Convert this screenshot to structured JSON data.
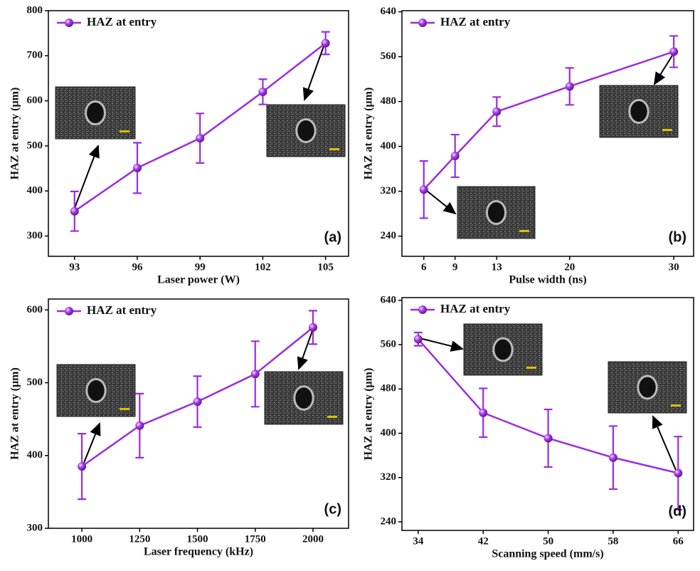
{
  "chart_data": [
    {
      "type": "line",
      "panel_label": "(a)",
      "x_label": "Laser power (W)",
      "y_label": "HAZ at entry (µm)",
      "x": [
        93,
        96,
        99,
        102,
        105
      ],
      "xlim": [
        91.75,
        106.1
      ],
      "xticks": [
        93,
        96,
        99,
        102,
        105
      ],
      "ylim": [
        255,
        800
      ],
      "yticks": [
        300,
        400,
        500,
        600,
        700,
        800
      ],
      "legend": "upper left",
      "series": [
        {
          "name": "HAZ at entry",
          "color": "#9a2de0",
          "values": [
            355,
            451,
            517,
            620,
            728
          ],
          "errors": [
            44,
            56,
            55,
            28,
            25
          ]
        }
      ]
    },
    {
      "type": "line",
      "panel_label": "(b)",
      "x_label": "Pulse width (ns)",
      "y_label": "HAZ at entry (µm)",
      "x": [
        6,
        9,
        13,
        20,
        30
      ],
      "xlim": [
        3.9,
        31.9
      ],
      "xticks": [
        6,
        9,
        13,
        20,
        30
      ],
      "ylim": [
        204,
        642
      ],
      "yticks": [
        240,
        320,
        400,
        480,
        560,
        640
      ],
      "legend": "upper left",
      "series": [
        {
          "name": "HAZ at entry",
          "color": "#9a2de0",
          "values": [
            323,
            383,
            462,
            507,
            569
          ],
          "errors": [
            51,
            38,
            26,
            33,
            28
          ]
        }
      ]
    },
    {
      "type": "line",
      "panel_label": "(c)",
      "x_label": "Laser frequency (kHz)",
      "y_label": "HAZ at entry (µm)",
      "x": [
        1000,
        1250,
        1500,
        1750,
        2000
      ],
      "xlim": [
        855,
        2154
      ],
      "xticks": [
        1000,
        1250,
        1500,
        1750,
        2000
      ],
      "ylim": [
        300,
        615
      ],
      "yticks": [
        300,
        400,
        500,
        600
      ],
      "legend": "upper left",
      "series": [
        {
          "name": "HAZ at entry",
          "color": "#9a2de0",
          "values": [
            385,
            441,
            474,
            512,
            576
          ],
          "errors": [
            45,
            44,
            35,
            45,
            23
          ]
        }
      ]
    },
    {
      "type": "line",
      "panel_label": "(d)",
      "x_label": "Scanning speed (mm/s)",
      "y_label": "HAZ at entry (µm)",
      "x": [
        34,
        42,
        50,
        58,
        66
      ],
      "xlim": [
        32,
        67.9
      ],
      "xticks": [
        34,
        42,
        50,
        58,
        66
      ],
      "ylim": [
        224.5,
        645
      ],
      "yticks": [
        240,
        320,
        400,
        480,
        560,
        640
      ],
      "legend": "upper left",
      "series": [
        {
          "name": "HAZ at entry",
          "color": "#9a2de0",
          "values": [
            570,
            437,
            391,
            356,
            328
          ],
          "errors": [
            12,
            44,
            52,
            57,
            66
          ]
        }
      ]
    }
  ]
}
